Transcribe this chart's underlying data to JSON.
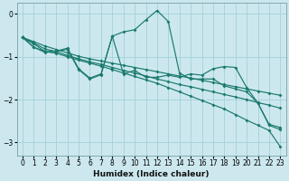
{
  "xlabel": "Humidex (Indice chaleur)",
  "xlim": [
    -0.5,
    23.5
  ],
  "ylim": [
    -3.3,
    0.25
  ],
  "yticks": [
    0,
    -1,
    -2,
    -3
  ],
  "xticks": [
    0,
    1,
    2,
    3,
    4,
    5,
    6,
    7,
    8,
    9,
    10,
    11,
    12,
    13,
    14,
    15,
    16,
    17,
    18,
    19,
    20,
    21,
    22,
    23
  ],
  "bg_color": "#cce8ee",
  "grid_color": "#a8d4db",
  "line_color": "#1a7a6d",
  "lines": [
    {
      "x": [
        0,
        1,
        2,
        3,
        4,
        5,
        6,
        7,
        8,
        9,
        10,
        11,
        12,
        13,
        14,
        15,
        16,
        17,
        18,
        19,
        20,
        21,
        22,
        23
      ],
      "y": [
        -0.55,
        -0.78,
        -0.9,
        -0.87,
        -0.8,
        -1.28,
        -1.5,
        -1.4,
        -0.52,
        -0.42,
        -0.37,
        -0.14,
        0.08,
        -0.18,
        -1.38,
        -1.52,
        -1.52,
        -1.52,
        -1.68,
        -1.75,
        -1.82,
        -2.08,
        -2.6,
        -2.7
      ]
    },
    {
      "x": [
        0,
        1,
        2,
        3,
        4,
        5,
        6,
        7,
        8,
        9,
        10,
        11,
        12,
        13,
        14,
        15,
        16,
        17,
        18,
        19,
        20,
        21,
        22,
        23
      ],
      "y": [
        -0.55,
        -0.78,
        -0.88,
        -0.87,
        -0.83,
        -1.3,
        -1.52,
        -1.42,
        -0.52,
        -1.4,
        -1.32,
        -1.48,
        -1.48,
        -1.43,
        -1.48,
        -1.4,
        -1.43,
        -1.28,
        -1.23,
        -1.25,
        -1.72,
        -2.08,
        -2.58,
        -2.65
      ]
    },
    {
      "x": [
        0,
        1,
        2,
        3,
        4,
        5,
        6,
        7,
        8,
        9,
        10,
        11,
        12,
        13,
        14,
        15,
        16,
        17,
        18,
        19,
        20,
        21,
        22,
        23
      ],
      "y": [
        -0.55,
        -0.65,
        -0.75,
        -0.83,
        -0.91,
        -0.99,
        -1.05,
        -1.1,
        -1.15,
        -1.2,
        -1.25,
        -1.3,
        -1.35,
        -1.4,
        -1.45,
        -1.5,
        -1.55,
        -1.6,
        -1.65,
        -1.7,
        -1.75,
        -1.8,
        -1.85,
        -1.9
      ]
    },
    {
      "x": [
        0,
        1,
        2,
        3,
        4,
        5,
        6,
        7,
        8,
        9,
        10,
        11,
        12,
        13,
        14,
        15,
        16,
        17,
        18,
        19,
        20,
        21,
        22,
        23
      ],
      "y": [
        -0.55,
        -0.68,
        -0.82,
        -0.88,
        -0.97,
        -1.05,
        -1.12,
        -1.18,
        -1.25,
        -1.32,
        -1.38,
        -1.45,
        -1.52,
        -1.58,
        -1.65,
        -1.7,
        -1.76,
        -1.82,
        -1.88,
        -1.94,
        -2.0,
        -2.07,
        -2.13,
        -2.2
      ]
    },
    {
      "x": [
        0,
        1,
        2,
        3,
        4,
        5,
        6,
        7,
        8,
        9,
        10,
        11,
        12,
        13,
        14,
        15,
        16,
        17,
        18,
        19,
        20,
        21,
        22,
        23
      ],
      "y": [
        -0.55,
        -0.7,
        -0.88,
        -0.92,
        -1.0,
        -1.08,
        -1.15,
        -1.22,
        -1.3,
        -1.38,
        -1.46,
        -1.54,
        -1.62,
        -1.72,
        -1.82,
        -1.92,
        -2.02,
        -2.12,
        -2.22,
        -2.35,
        -2.48,
        -2.6,
        -2.72,
        -3.1
      ]
    }
  ]
}
